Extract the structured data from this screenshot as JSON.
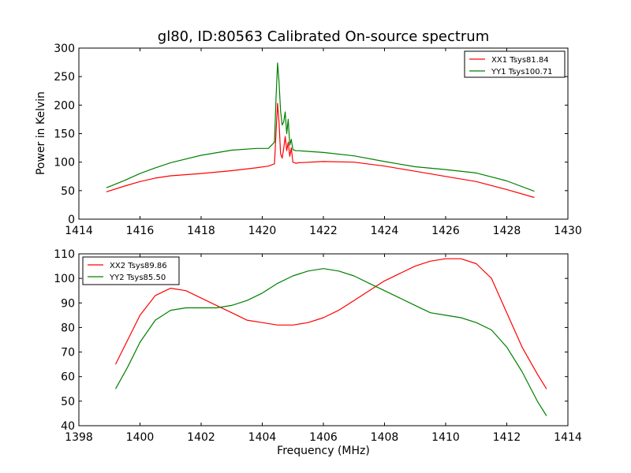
{
  "chart_data": [
    {
      "type": "line",
      "title": "gl80, ID:80563 Calibrated On-source spectrum",
      "xlabel": "",
      "ylabel": "Power in Kelvin",
      "xlim": [
        1414,
        1430
      ],
      "ylim": [
        0,
        300
      ],
      "xticks": [
        1414,
        1416,
        1418,
        1420,
        1422,
        1424,
        1426,
        1428,
        1430
      ],
      "yticks": [
        0,
        50,
        100,
        150,
        200,
        250,
        300
      ],
      "legend_position": "top-right",
      "series": [
        {
          "name": "XX1 Tsys81.84",
          "color": "#ff0000",
          "x": [
            1414.9,
            1415.5,
            1416.0,
            1416.5,
            1417.0,
            1418.0,
            1419.0,
            1419.8,
            1420.2,
            1420.4,
            1420.45,
            1420.5,
            1420.55,
            1420.6,
            1420.65,
            1420.7,
            1420.75,
            1420.8,
            1420.85,
            1420.9,
            1420.95,
            1421.0,
            1421.1,
            1421.2,
            1422.0,
            1423.0,
            1424.0,
            1425.0,
            1426.0,
            1427.0,
            1428.0,
            1428.9
          ],
          "y": [
            48,
            58,
            66,
            72,
            76,
            80,
            85,
            90,
            93,
            97,
            150,
            203,
            170,
            115,
            107,
            123,
            145,
            120,
            135,
            110,
            125,
            100,
            98,
            99,
            101,
            100,
            93,
            84,
            75,
            66,
            52,
            38
          ]
        },
        {
          "name": "YY1 Tsys100.71",
          "color": "#008000",
          "x": [
            1414.9,
            1415.5,
            1416.0,
            1416.5,
            1417.0,
            1418.0,
            1419.0,
            1419.8,
            1420.2,
            1420.4,
            1420.45,
            1420.5,
            1420.55,
            1420.6,
            1420.65,
            1420.7,
            1420.75,
            1420.8,
            1420.85,
            1420.9,
            1420.95,
            1421.0,
            1421.1,
            1421.2,
            1422.0,
            1423.0,
            1424.0,
            1425.0,
            1426.0,
            1427.0,
            1428.0,
            1428.9
          ],
          "y": [
            55,
            68,
            80,
            90,
            99,
            112,
            121,
            124,
            124,
            135,
            210,
            274,
            240,
            190,
            165,
            170,
            188,
            150,
            175,
            130,
            140,
            122,
            120,
            120,
            117,
            111,
            101,
            92,
            87,
            81,
            67,
            49
          ]
        }
      ]
    },
    {
      "type": "line",
      "title": "",
      "xlabel": "Frequency (MHz)",
      "ylabel": "",
      "xlim": [
        1398,
        1414
      ],
      "ylim": [
        40,
        110
      ],
      "xticks": [
        1398,
        1400,
        1402,
        1404,
        1406,
        1408,
        1410,
        1412,
        1414
      ],
      "yticks": [
        40,
        50,
        60,
        70,
        80,
        90,
        100,
        110
      ],
      "legend_position": "top-left",
      "series": [
        {
          "name": "XX2 Tsys89.86",
          "color": "#ff0000",
          "x": [
            1399.2,
            1399.6,
            1400.0,
            1400.5,
            1401.0,
            1401.5,
            1402.0,
            1402.5,
            1403.0,
            1403.5,
            1404.0,
            1404.5,
            1405.0,
            1405.5,
            1406.0,
            1406.5,
            1407.0,
            1407.5,
            1408.0,
            1408.5,
            1409.0,
            1409.5,
            1410.0,
            1410.5,
            1411.0,
            1411.5,
            1412.0,
            1412.5,
            1413.0,
            1413.3
          ],
          "y": [
            65,
            75,
            85,
            93,
            96,
            95,
            92,
            89,
            86,
            83,
            82,
            81,
            81,
            82,
            84,
            87,
            91,
            95,
            99,
            102,
            105,
            107,
            108,
            108,
            106,
            100,
            86,
            72,
            61,
            55
          ]
        },
        {
          "name": "YY2 Tsys85.50",
          "color": "#008000",
          "x": [
            1399.2,
            1399.6,
            1400.0,
            1400.5,
            1401.0,
            1401.5,
            1402.0,
            1402.5,
            1403.0,
            1403.5,
            1404.0,
            1404.5,
            1405.0,
            1405.5,
            1406.0,
            1406.5,
            1407.0,
            1407.5,
            1408.0,
            1408.5,
            1409.0,
            1409.5,
            1410.0,
            1410.5,
            1411.0,
            1411.5,
            1412.0,
            1412.5,
            1413.0,
            1413.3
          ],
          "y": [
            55,
            64,
            74,
            83,
            87,
            88,
            88,
            88,
            89,
            91,
            94,
            98,
            101,
            103,
            104,
            103,
            101,
            98,
            95,
            92,
            89,
            86,
            85,
            84,
            82,
            79,
            72,
            62,
            50,
            44
          ]
        }
      ]
    }
  ]
}
